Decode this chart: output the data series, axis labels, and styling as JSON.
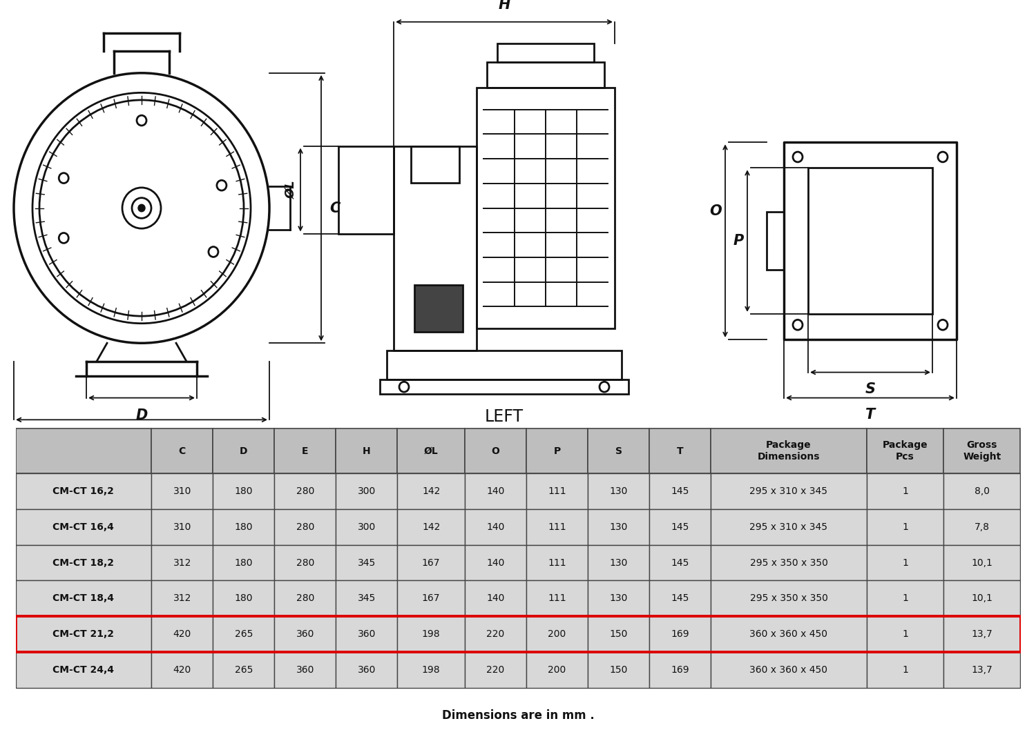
{
  "bg_color": "#ffffff",
  "table_header_bg": "#bebebe",
  "table_row_bg": "#d8d8d8",
  "table_row_alt_bg": "#d8d8d8",
  "highlight_row": 4,
  "highlight_color": "#dd0000",
  "columns": [
    "",
    "C",
    "D",
    "E",
    "H",
    "ØL",
    "O",
    "P",
    "S",
    "T",
    "Package\nDimensions",
    "Package\nPcs",
    "Gross\nWeight"
  ],
  "rows": [
    [
      "CM-CT 16,2",
      "310",
      "180",
      "280",
      "300",
      "142",
      "140",
      "111",
      "130",
      "145",
      "295 x 310 x 345",
      "1",
      "8,0"
    ],
    [
      "CM-CT 16,4",
      "310",
      "180",
      "280",
      "300",
      "142",
      "140",
      "111",
      "130",
      "145",
      "295 x 310 x 345",
      "1",
      "7,8"
    ],
    [
      "CM-CT 18,2",
      "312",
      "180",
      "280",
      "345",
      "167",
      "140",
      "111",
      "130",
      "145",
      "295 x 350 x 350",
      "1",
      "10,1"
    ],
    [
      "CM-CT 18,4",
      "312",
      "180",
      "280",
      "345",
      "167",
      "140",
      "111",
      "130",
      "145",
      "295 x 350 x 350",
      "1",
      "10,1"
    ],
    [
      "CM-CT 21,2",
      "420",
      "265",
      "360",
      "360",
      "198",
      "220",
      "200",
      "150",
      "169",
      "360 x 360 x 450",
      "1",
      "13,7"
    ],
    [
      "CM-CT 24,4",
      "420",
      "265",
      "360",
      "360",
      "198",
      "220",
      "200",
      "150",
      "169",
      "360 x 360 x 450",
      "1",
      "13,7"
    ]
  ],
  "footer_text": "Dimensions are in mm .",
  "left_label": "LEFT"
}
